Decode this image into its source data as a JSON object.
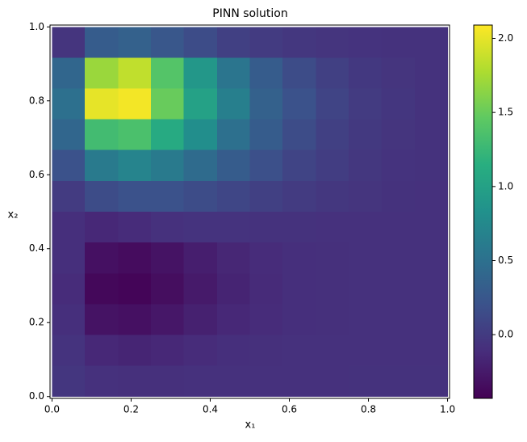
{
  "chart_data": {
    "type": "heatmap",
    "title": "PINN solution",
    "xlabel": "x₁",
    "ylabel": "x₂",
    "colormap": "viridis",
    "x_bins": [
      0,
      0.083,
      0.167,
      0.25,
      0.333,
      0.417,
      0.5,
      0.583,
      0.667,
      0.75,
      0.833,
      0.917,
      1
    ],
    "y_bins": [
      1,
      0.917,
      0.833,
      0.75,
      0.667,
      0.583,
      0.5,
      0.417,
      0.333,
      0.25,
      0.167,
      0.083,
      0
    ],
    "z": [
      [
        -0.05,
        0.3,
        0.35,
        0.25,
        0.15,
        0.05,
        0.0,
        -0.03,
        -0.05,
        -0.06,
        -0.07,
        -0.07
      ],
      [
        0.4,
        1.7,
        1.85,
        1.4,
        0.9,
        0.55,
        0.3,
        0.15,
        0.05,
        -0.02,
        -0.05,
        -0.07
      ],
      [
        0.5,
        2.0,
        2.05,
        1.5,
        1.0,
        0.65,
        0.35,
        0.2,
        0.08,
        0.0,
        -0.04,
        -0.07
      ],
      [
        0.4,
        1.3,
        1.35,
        1.1,
        0.8,
        0.5,
        0.3,
        0.15,
        0.05,
        -0.01,
        -0.05,
        -0.07
      ],
      [
        0.2,
        0.6,
        0.7,
        0.6,
        0.45,
        0.3,
        0.18,
        0.08,
        0.02,
        -0.03,
        -0.06,
        -0.07
      ],
      [
        0.0,
        0.15,
        0.2,
        0.2,
        0.15,
        0.1,
        0.05,
        0.0,
        -0.03,
        -0.05,
        -0.07,
        -0.08
      ],
      [
        -0.1,
        -0.15,
        -0.12,
        -0.08,
        -0.06,
        -0.06,
        -0.07,
        -0.07,
        -0.08,
        -0.08,
        -0.08,
        -0.08
      ],
      [
        -0.1,
        -0.32,
        -0.35,
        -0.3,
        -0.22,
        -0.16,
        -0.12,
        -0.1,
        -0.09,
        -0.08,
        -0.08,
        -0.08
      ],
      [
        -0.12,
        -0.38,
        -0.4,
        -0.34,
        -0.25,
        -0.18,
        -0.13,
        -0.1,
        -0.09,
        -0.08,
        -0.08,
        -0.08
      ],
      [
        -0.1,
        -0.3,
        -0.32,
        -0.27,
        -0.2,
        -0.15,
        -0.12,
        -0.1,
        -0.09,
        -0.08,
        -0.08,
        -0.08
      ],
      [
        -0.06,
        -0.15,
        -0.17,
        -0.15,
        -0.12,
        -0.1,
        -0.09,
        -0.08,
        -0.08,
        -0.08,
        -0.08,
        -0.08
      ],
      [
        -0.04,
        -0.08,
        -0.09,
        -0.09,
        -0.08,
        -0.08,
        -0.08,
        -0.08,
        -0.08,
        -0.07,
        -0.07,
        -0.07
      ]
    ],
    "xlim": [
      -0.005,
      1.005
    ],
    "ylim": [
      -0.005,
      1.005
    ],
    "xticks": [
      {
        "value": 0,
        "label": "0.0"
      },
      0.2,
      0.4,
      0.6,
      0.8,
      {
        "value": 1,
        "label": "1.0"
      }
    ],
    "yticks": [
      {
        "value": 0,
        "label": "0.0"
      },
      0.2,
      0.4,
      0.6,
      0.8,
      {
        "value": 1,
        "label": "1.0"
      }
    ],
    "clim": [
      -0.43,
      2.09
    ],
    "cticks": [
      {
        "value": 0,
        "label": "0.0"
      },
      0.5,
      {
        "value": 1,
        "label": "1.0"
      },
      1.5,
      {
        "value": 2,
        "label": "2.0"
      }
    ]
  }
}
